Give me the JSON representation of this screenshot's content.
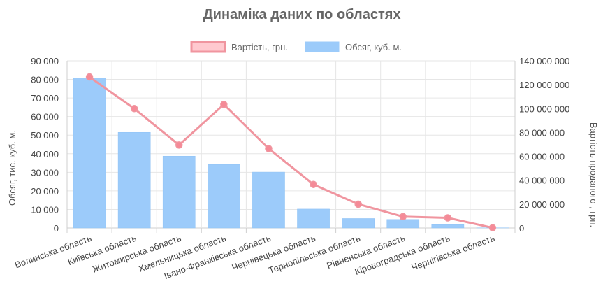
{
  "chart_data": {
    "type": "bar+line",
    "title": "Динаміка даних по областях",
    "categories": [
      "Волинська область",
      "Київська область",
      "Житомирська область",
      "Хмельницька область",
      "Івано-Франківська область",
      "Чернівецька область",
      "Тернопільська область",
      "Рівненська область",
      "Кіровоградська область",
      "Чернігівська область"
    ],
    "series": [
      {
        "name": "Обсяг, куб. м.",
        "type": "bar",
        "axis": "left",
        "color": "#9ccbfa",
        "values": [
          80700,
          51500,
          38700,
          34200,
          30100,
          10200,
          5100,
          4600,
          1800,
          100
        ]
      },
      {
        "name": "Вартість, грн.",
        "type": "line",
        "axis": "right",
        "color": "#f0959f",
        "values": [
          126500000,
          100000000,
          69500000,
          103500000,
          66500000,
          36500000,
          20000000,
          9500000,
          8500000,
          200000
        ]
      }
    ],
    "legend_order": [
      "Вартість, грн.",
      "Обсяг, куб. м."
    ],
    "legend_position": "top",
    "y_left": {
      "label": "Обсяг, тис. куб. м.",
      "min": 0,
      "max": 90000,
      "ticks": [
        "0",
        "10 000",
        "20 000",
        "30 000",
        "40 000",
        "50 000",
        "60 000",
        "70 000",
        "80 000",
        "90 000"
      ]
    },
    "y_right": {
      "label": "Вартість проданого , грн.",
      "min": 0,
      "max": 140000000,
      "ticks": [
        "0",
        "20 000 000",
        "40 000 000",
        "60 000 000",
        "80 000 000",
        "100 000 000",
        "120 000 000",
        "140 000 000"
      ]
    },
    "grid": true
  }
}
